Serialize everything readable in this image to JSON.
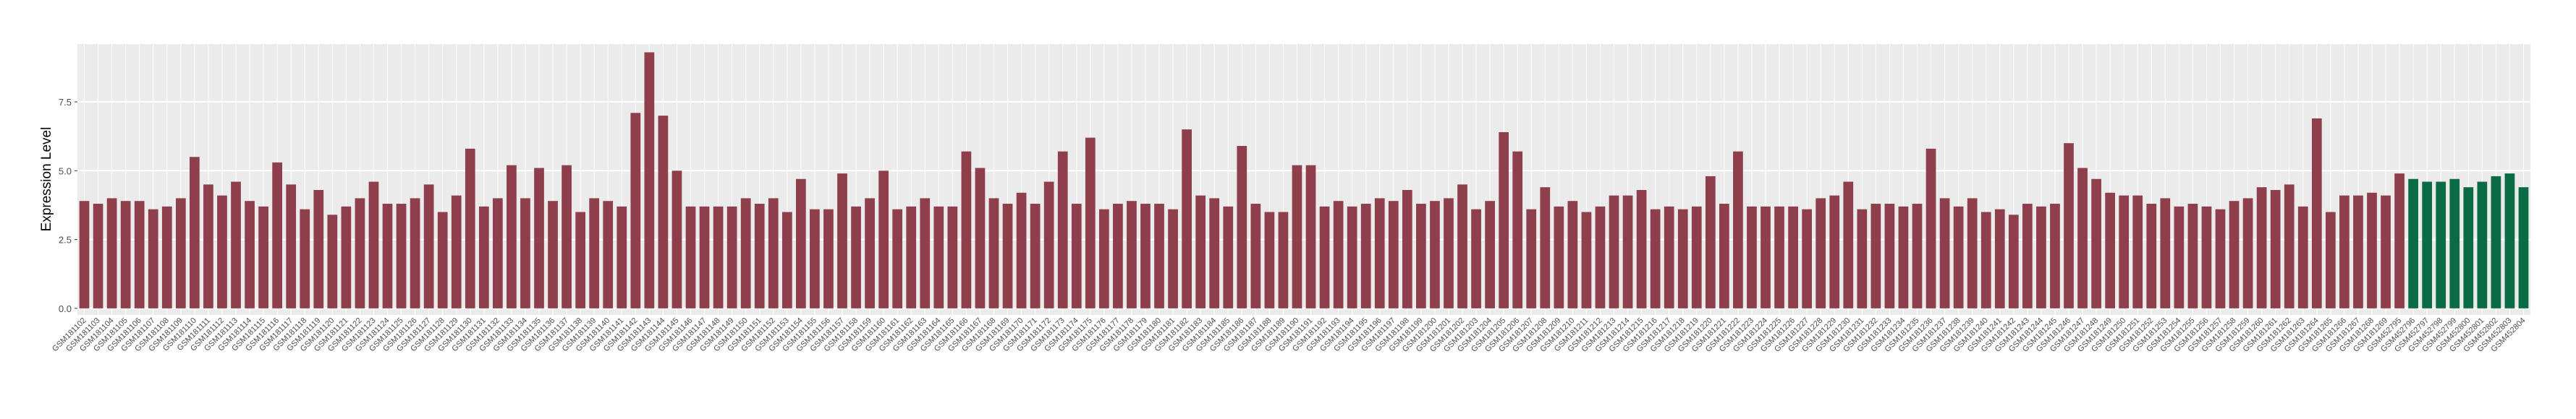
{
  "chart_data": {
    "type": "bar",
    "ylabel": "Expression Level",
    "categories": [
      "GSM181102",
      "GSM181103",
      "GSM181104",
      "GSM181105",
      "GSM181106",
      "GSM181107",
      "GSM181108",
      "GSM181109",
      "GSM181110",
      "GSM181111",
      "GSM181112",
      "GSM181113",
      "GSM181114",
      "GSM181115",
      "GSM181116",
      "GSM181117",
      "GSM181118",
      "GSM181119",
      "GSM181120",
      "GSM181121",
      "GSM181122",
      "GSM181123",
      "GSM181124",
      "GSM181125",
      "GSM181126",
      "GSM181127",
      "GSM181128",
      "GSM181129",
      "GSM181130",
      "GSM181131",
      "GSM181132",
      "GSM181133",
      "GSM181134",
      "GSM181135",
      "GSM181136",
      "GSM181137",
      "GSM181138",
      "GSM181139",
      "GSM181140",
      "GSM181141",
      "GSM181142",
      "GSM181143",
      "GSM181144",
      "GSM181145",
      "GSM181146",
      "GSM181147",
      "GSM181148",
      "GSM181149",
      "GSM181150",
      "GSM181151",
      "GSM181152",
      "GSM181153",
      "GSM181154",
      "GSM181155",
      "GSM181156",
      "GSM181157",
      "GSM181158",
      "GSM181159",
      "GSM181160",
      "GSM181161",
      "GSM181162",
      "GSM181163",
      "GSM181164",
      "GSM181165",
      "GSM181166",
      "GSM181167",
      "GSM181168",
      "GSM181169",
      "GSM181170",
      "GSM181171",
      "GSM181172",
      "GSM181173",
      "GSM181174",
      "GSM181175",
      "GSM181176",
      "GSM181177",
      "GSM181178",
      "GSM181179",
      "GSM181180",
      "GSM181181",
      "GSM181182",
      "GSM181183",
      "GSM181184",
      "GSM181185",
      "GSM181186",
      "GSM181187",
      "GSM181188",
      "GSM181189",
      "GSM181190",
      "GSM181191",
      "GSM181192",
      "GSM181193",
      "GSM181194",
      "GSM181195",
      "GSM181196",
      "GSM181197",
      "GSM181198",
      "GSM181199",
      "GSM181200",
      "GSM181201",
      "GSM181202",
      "GSM181203",
      "GSM181204",
      "GSM181205",
      "GSM181206",
      "GSM181207",
      "GSM181208",
      "GSM181209",
      "GSM181210",
      "GSM181211",
      "GSM181212",
      "GSM181213",
      "GSM181214",
      "GSM181215",
      "GSM181216",
      "GSM181217",
      "GSM181218",
      "GSM181219",
      "GSM181220",
      "GSM181221",
      "GSM181222",
      "GSM181223",
      "GSM181224",
      "GSM181225",
      "GSM181226",
      "GSM181227",
      "GSM181228",
      "GSM181229",
      "GSM181230",
      "GSM181231",
      "GSM181232",
      "GSM181233",
      "GSM181234",
      "GSM181235",
      "GSM181236",
      "GSM181237",
      "GSM181238",
      "GSM181239",
      "GSM181240",
      "GSM181241",
      "GSM181242",
      "GSM181243",
      "GSM181244",
      "GSM181245",
      "GSM181246",
      "GSM181247",
      "GSM181248",
      "GSM181249",
      "GSM181250",
      "GSM181251",
      "GSM181252",
      "GSM181253",
      "GSM181254",
      "GSM181255",
      "GSM181256",
      "GSM181257",
      "GSM181258",
      "GSM181259",
      "GSM181260",
      "GSM181261",
      "GSM181262",
      "GSM181263",
      "GSM181264",
      "GSM181265",
      "GSM181266",
      "GSM181267",
      "GSM181268",
      "GSM181269",
      "GSM452795",
      "GSM452796",
      "GSM452797",
      "GSM452798",
      "GSM452799",
      "GSM452800",
      "GSM452801",
      "GSM452802",
      "GSM452803",
      "GSM452804"
    ],
    "values": [
      3.9,
      3.8,
      4.0,
      3.9,
      3.9,
      3.6,
      3.7,
      4.0,
      5.5,
      4.5,
      4.1,
      4.6,
      3.9,
      3.7,
      5.3,
      4.5,
      3.6,
      4.3,
      3.4,
      3.7,
      4.0,
      4.6,
      3.8,
      3.8,
      4.0,
      4.5,
      3.5,
      4.1,
      5.8,
      3.7,
      4.0,
      5.2,
      4.0,
      5.1,
      3.9,
      5.2,
      3.5,
      4.0,
      3.9,
      3.7,
      7.1,
      9.3,
      7.0,
      5.0,
      3.7,
      3.7,
      3.7,
      3.7,
      4.0,
      3.8,
      4.0,
      3.5,
      4.7,
      3.6,
      3.6,
      4.9,
      3.7,
      4.0,
      5.0,
      3.6,
      3.7,
      4.0,
      3.7,
      3.7,
      5.7,
      5.1,
      4.0,
      3.8,
      4.2,
      3.8,
      4.6,
      5.7,
      3.8,
      6.2,
      3.6,
      3.8,
      3.9,
      3.8,
      3.8,
      3.6,
      6.5,
      4.1,
      4.0,
      3.7,
      5.9,
      3.8,
      3.5,
      3.5,
      5.2,
      5.2,
      3.7,
      3.9,
      3.7,
      3.8,
      4.0,
      3.9,
      4.3,
      3.8,
      3.9,
      4.0,
      4.5,
      3.6,
      3.9,
      6.4,
      5.7,
      3.6,
      4.4,
      3.7,
      3.9,
      3.5,
      3.7,
      4.1,
      4.1,
      4.3,
      3.6,
      3.7,
      3.6,
      3.7,
      4.8,
      3.8,
      5.7,
      3.7,
      3.7,
      3.7,
      3.7,
      3.6,
      4.0,
      4.1,
      4.6,
      3.6,
      3.8,
      3.8,
      3.7,
      3.8,
      5.8,
      4.0,
      3.7,
      4.0,
      3.5,
      3.6,
      3.4,
      3.8,
      3.7,
      3.8,
      6.0,
      5.1,
      4.7,
      4.2,
      4.1,
      4.1,
      3.8,
      4.0,
      3.7,
      3.8,
      3.7,
      3.6,
      3.9,
      4.0,
      4.4,
      4.3,
      4.5,
      3.7,
      6.9,
      3.5,
      4.1,
      4.1,
      4.2,
      4.1,
      4.9,
      4.7,
      4.6,
      4.6,
      4.7,
      4.4,
      4.6,
      4.8,
      4.9,
      4.4
    ],
    "colors": [
      "#8f3e4c",
      "#8f3e4c",
      "#8f3e4c",
      "#8f3e4c",
      "#8f3e4c",
      "#8f3e4c",
      "#8f3e4c",
      "#8f3e4c",
      "#8f3e4c",
      "#8f3e4c",
      "#8f3e4c",
      "#8f3e4c",
      "#8f3e4c",
      "#8f3e4c",
      "#8f3e4c",
      "#8f3e4c",
      "#8f3e4c",
      "#8f3e4c",
      "#8f3e4c",
      "#8f3e4c",
      "#8f3e4c",
      "#8f3e4c",
      "#8f3e4c",
      "#8f3e4c",
      "#8f3e4c",
      "#8f3e4c",
      "#8f3e4c",
      "#8f3e4c",
      "#8f3e4c",
      "#8f3e4c",
      "#8f3e4c",
      "#8f3e4c",
      "#8f3e4c",
      "#8f3e4c",
      "#8f3e4c",
      "#8f3e4c",
      "#8f3e4c",
      "#8f3e4c",
      "#8f3e4c",
      "#8f3e4c",
      "#8f3e4c",
      "#8f3e4c",
      "#8f3e4c",
      "#8f3e4c",
      "#8f3e4c",
      "#8f3e4c",
      "#8f3e4c",
      "#8f3e4c",
      "#8f3e4c",
      "#8f3e4c",
      "#8f3e4c",
      "#8f3e4c",
      "#8f3e4c",
      "#8f3e4c",
      "#8f3e4c",
      "#8f3e4c",
      "#8f3e4c",
      "#8f3e4c",
      "#8f3e4c",
      "#8f3e4c",
      "#8f3e4c",
      "#8f3e4c",
      "#8f3e4c",
      "#8f3e4c",
      "#8f3e4c",
      "#8f3e4c",
      "#8f3e4c",
      "#8f3e4c",
      "#8f3e4c",
      "#8f3e4c",
      "#8f3e4c",
      "#8f3e4c",
      "#8f3e4c",
      "#8f3e4c",
      "#8f3e4c",
      "#8f3e4c",
      "#8f3e4c",
      "#8f3e4c",
      "#8f3e4c",
      "#8f3e4c",
      "#8f3e4c",
      "#8f3e4c",
      "#8f3e4c",
      "#8f3e4c",
      "#8f3e4c",
      "#8f3e4c",
      "#8f3e4c",
      "#8f3e4c",
      "#8f3e4c",
      "#8f3e4c",
      "#8f3e4c",
      "#8f3e4c",
      "#8f3e4c",
      "#8f3e4c",
      "#8f3e4c",
      "#8f3e4c",
      "#8f3e4c",
      "#8f3e4c",
      "#8f3e4c",
      "#8f3e4c",
      "#8f3e4c",
      "#8f3e4c",
      "#8f3e4c",
      "#8f3e4c",
      "#8f3e4c",
      "#8f3e4c",
      "#8f3e4c",
      "#8f3e4c",
      "#8f3e4c",
      "#8f3e4c",
      "#8f3e4c",
      "#8f3e4c",
      "#8f3e4c",
      "#8f3e4c",
      "#8f3e4c",
      "#8f3e4c",
      "#8f3e4c",
      "#8f3e4c",
      "#8f3e4c",
      "#8f3e4c",
      "#8f3e4c",
      "#8f3e4c",
      "#8f3e4c",
      "#8f3e4c",
      "#8f3e4c",
      "#8f3e4c",
      "#8f3e4c",
      "#8f3e4c",
      "#8f3e4c",
      "#8f3e4c",
      "#8f3e4c",
      "#8f3e4c",
      "#8f3e4c",
      "#8f3e4c",
      "#8f3e4c",
      "#8f3e4c",
      "#8f3e4c",
      "#8f3e4c",
      "#8f3e4c",
      "#8f3e4c",
      "#8f3e4c",
      "#8f3e4c",
      "#8f3e4c",
      "#8f3e4c",
      "#8f3e4c",
      "#8f3e4c",
      "#8f3e4c",
      "#8f3e4c",
      "#8f3e4c",
      "#8f3e4c",
      "#8f3e4c",
      "#8f3e4c",
      "#8f3e4c",
      "#8f3e4c",
      "#8f3e4c",
      "#8f3e4c",
      "#8f3e4c",
      "#8f3e4c",
      "#8f3e4c",
      "#8f3e4c",
      "#8f3e4c",
      "#8f3e4c",
      "#8f3e4c",
      "#8f3e4c",
      "#8f3e4c",
      "#8f3e4c",
      "#8f3e4c",
      "#8f3e4c",
      "#8f3e4c",
      "#0b6b45",
      "#0b6b45",
      "#0b6b45",
      "#0b6b45",
      "#0b6b45",
      "#0b6b45",
      "#0b6b45",
      "#0b6b45",
      "#0b6b45",
      "#0b6b45"
    ],
    "ylim": [
      -0.24,
      9.6
    ],
    "yticks": [
      {
        "value": 0,
        "label": "0.0"
      },
      2.5,
      {
        "value": 5,
        "label": "5.0"
      },
      7.5
    ],
    "grid": true
  }
}
